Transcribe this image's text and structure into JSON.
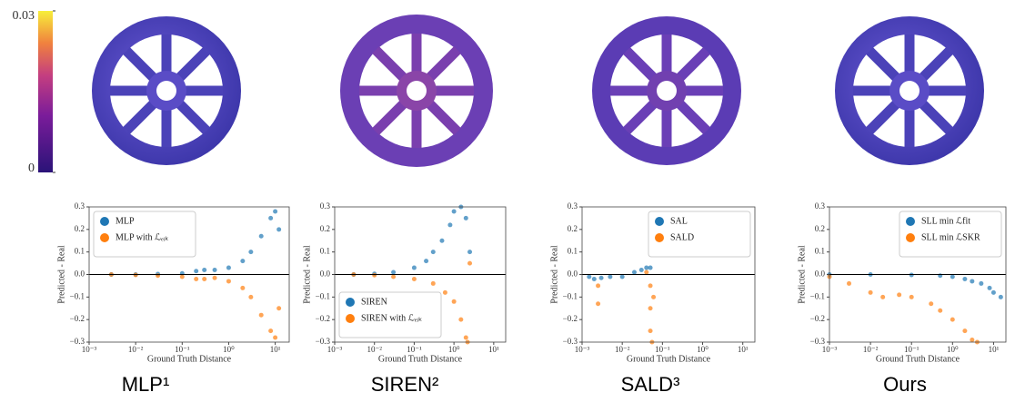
{
  "colorbar": {
    "ylim": [
      0,
      0.03
    ],
    "yticks": [
      0,
      0.03
    ]
  },
  "chart_data": [
    {
      "type": "scatter",
      "caption": "MLP¹",
      "xlabel": "Ground Truth Distance",
      "ylabel": "Predicted - Real",
      "log_x": true,
      "hline": 0,
      "legend": "upper left",
      "xlim": [
        0.001,
        20
      ],
      "xticks": [
        {
          "value": 0.001,
          "label": "10⁻³"
        },
        {
          "value": 0.01,
          "label": "10⁻²"
        },
        {
          "value": 0.1,
          "label": "10⁻¹"
        },
        {
          "value": 1,
          "label": "10⁰"
        },
        {
          "value": 10,
          "label": "10¹"
        }
      ],
      "ylim": [
        -0.3,
        0.3
      ],
      "yticks": [
        {
          "value": -0.3,
          "label": "−0.3"
        },
        {
          "value": -0.2,
          "label": "−0.2"
        },
        {
          "value": -0.1,
          "label": "−0.1"
        },
        {
          "value": 0,
          "label": "0.0"
        },
        0.1,
        0.2,
        0.3
      ],
      "series": [
        {
          "name": "MLP",
          "color": "#1f77b4",
          "x": [
            0.003,
            0.01,
            0.03,
            0.1,
            0.2,
            0.3,
            0.5,
            1,
            2,
            3,
            5,
            8,
            10,
            12
          ],
          "values": [
            0,
            0,
            0.002,
            0.005,
            0.015,
            0.02,
            0.02,
            0.03,
            0.06,
            0.1,
            0.17,
            0.25,
            0.28,
            0.2
          ]
        },
        {
          "name": "MLP with ℒₑᵢₖ",
          "color": "#ff7f0e",
          "x": [
            0.003,
            0.01,
            0.03,
            0.1,
            0.2,
            0.3,
            0.5,
            1,
            2,
            3,
            5,
            8,
            10,
            12
          ],
          "values": [
            0,
            -0.002,
            -0.005,
            -0.01,
            -0.02,
            -0.02,
            -0.015,
            -0.03,
            -0.06,
            -0.1,
            -0.18,
            -0.25,
            -0.28,
            -0.15
          ]
        }
      ]
    },
    {
      "type": "scatter",
      "caption": "SIREN²",
      "xlabel": "Ground Truth Distance",
      "ylabel": "Predicted - Real",
      "log_x": true,
      "hline": 0,
      "legend": "lower left",
      "xlim": [
        0.001,
        20
      ],
      "xticks": [
        {
          "value": 0.001,
          "label": "10⁻³"
        },
        {
          "value": 0.01,
          "label": "10⁻²"
        },
        {
          "value": 0.1,
          "label": "10⁻¹"
        },
        {
          "value": 1,
          "label": "10⁰"
        },
        {
          "value": 10,
          "label": "10¹"
        }
      ],
      "ylim": [
        -0.3,
        0.3
      ],
      "yticks": [
        {
          "value": -0.3,
          "label": "−0.3"
        },
        {
          "value": -0.2,
          "label": "−0.2"
        },
        {
          "value": -0.1,
          "label": "−0.1"
        },
        {
          "value": 0,
          "label": "0.0"
        },
        0.1,
        0.2,
        0.3
      ],
      "series": [
        {
          "name": "SIREN",
          "color": "#1f77b4",
          "x": [
            0.003,
            0.01,
            0.03,
            0.1,
            0.2,
            0.3,
            0.5,
            0.8,
            1,
            1.5,
            2,
            2.5
          ],
          "values": [
            0,
            0.003,
            0.01,
            0.03,
            0.06,
            0.1,
            0.15,
            0.22,
            0.28,
            0.3,
            0.25,
            0.1
          ]
        },
        {
          "name": "SIREN with ℒₑᵢₖ",
          "color": "#ff7f0e",
          "x": [
            0.003,
            0.01,
            0.03,
            0.1,
            0.3,
            0.6,
            1,
            1.5,
            2,
            2.2,
            2.5
          ],
          "values": [
            0,
            -0.003,
            -0.01,
            -0.02,
            -0.04,
            -0.08,
            -0.12,
            -0.2,
            -0.28,
            -0.3,
            0.05
          ]
        }
      ]
    },
    {
      "type": "scatter",
      "caption": "SALD³",
      "xlabel": "Ground Truth Distance",
      "ylabel": "Predicted - Real",
      "log_x": true,
      "hline": 0,
      "legend": "upper right",
      "xlim": [
        0.001,
        20
      ],
      "xticks": [
        {
          "value": 0.001,
          "label": "10⁻³"
        },
        {
          "value": 0.01,
          "label": "10⁻²"
        },
        {
          "value": 0.1,
          "label": "10⁻¹"
        },
        {
          "value": 1,
          "label": "10⁰"
        },
        {
          "value": 10,
          "label": "10¹"
        }
      ],
      "ylim": [
        -0.3,
        0.3
      ],
      "yticks": [
        {
          "value": -0.3,
          "label": "−0.3"
        },
        {
          "value": -0.2,
          "label": "−0.2"
        },
        {
          "value": -0.1,
          "label": "−0.1"
        },
        {
          "value": 0,
          "label": "0.0"
        },
        0.1,
        0.2,
        0.3
      ],
      "series": [
        {
          "name": "SAL",
          "color": "#1f77b4",
          "x": [
            0.0015,
            0.002,
            0.003,
            0.005,
            0.01,
            0.02,
            0.03,
            0.04,
            0.05
          ],
          "values": [
            -0.01,
            -0.02,
            -0.015,
            -0.01,
            -0.01,
            0.01,
            0.02,
            0.03,
            0.03
          ]
        },
        {
          "name": "SALD",
          "color": "#ff7f0e",
          "x": [
            0.0025,
            0.0025,
            0.04,
            0.05,
            0.05,
            0.05,
            0.055,
            0.06
          ],
          "values": [
            -0.05,
            -0.13,
            0.01,
            -0.05,
            -0.15,
            -0.25,
            -0.3,
            -0.1
          ]
        }
      ]
    },
    {
      "type": "scatter",
      "caption": "Ours",
      "xlabel": "Ground Truth Distance",
      "ylabel": "Predicted - Real",
      "log_x": true,
      "hline": 0,
      "legend": "upper right",
      "xlim": [
        0.001,
        20
      ],
      "xticks": [
        {
          "value": 0.001,
          "label": "10⁻³"
        },
        {
          "value": 0.01,
          "label": "10⁻²"
        },
        {
          "value": 0.1,
          "label": "10⁻¹"
        },
        {
          "value": 1,
          "label": "10⁰"
        },
        {
          "value": 10,
          "label": "10¹"
        }
      ],
      "ylim": [
        -0.3,
        0.3
      ],
      "yticks": [
        {
          "value": -0.3,
          "label": "−0.3"
        },
        {
          "value": -0.2,
          "label": "−0.2"
        },
        {
          "value": -0.1,
          "label": "−0.1"
        },
        {
          "value": 0,
          "label": "0.0"
        },
        0.1,
        0.2,
        0.3
      ],
      "series": [
        {
          "name": "SLL min ℒfit",
          "color": "#1f77b4",
          "x": [
            0.001,
            0.01,
            0.1,
            0.5,
            1,
            2,
            3,
            5,
            8,
            10,
            15
          ],
          "values": [
            0,
            0,
            -0.002,
            -0.005,
            -0.01,
            -0.02,
            -0.03,
            -0.04,
            -0.06,
            -0.08,
            -0.1
          ]
        },
        {
          "name": "SLL min ℒSKR",
          "color": "#ff7f0e",
          "x": [
            0.001,
            0.003,
            0.01,
            0.02,
            0.05,
            0.1,
            0.3,
            0.5,
            1,
            2,
            3,
            4
          ],
          "values": [
            -0.01,
            -0.04,
            -0.08,
            -0.1,
            -0.09,
            -0.1,
            -0.13,
            -0.16,
            -0.2,
            -0.25,
            -0.29,
            -0.3
          ]
        }
      ]
    }
  ]
}
